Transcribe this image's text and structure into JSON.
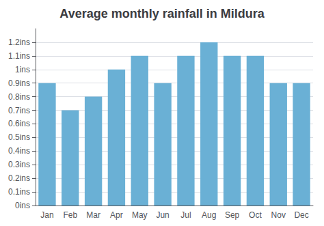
{
  "chart_data": {
    "type": "bar",
    "title": "Average monthly rainfall in Mildura",
    "categories": [
      "Jan",
      "Feb",
      "Mar",
      "Apr",
      "May",
      "Jun",
      "Jul",
      "Aug",
      "Sep",
      "Oct",
      "Nov",
      "Dec"
    ],
    "values": [
      0.9,
      0.7,
      0.8,
      1.0,
      1.1,
      0.9,
      1.1,
      1.2,
      1.1,
      1.1,
      0.9,
      0.9
    ],
    "color": "#6ab0d5",
    "ylim": [
      0,
      1.3
    ],
    "yticks": [
      {
        "value": 0,
        "label": "0ins"
      },
      {
        "value": 0.1,
        "label": "0.1ins"
      },
      {
        "value": 0.2,
        "label": "0.2ins"
      },
      {
        "value": 0.3,
        "label": "0.3ins"
      },
      {
        "value": 0.4,
        "label": "0.4ins"
      },
      {
        "value": 0.5,
        "label": "0.5ins"
      },
      {
        "value": 0.6,
        "label": "0.6ins"
      },
      {
        "value": 0.7,
        "label": "0.7ins"
      },
      {
        "value": 0.8,
        "label": "0.8ins"
      },
      {
        "value": 0.9,
        "label": "0.9ins"
      },
      {
        "value": 1.0,
        "label": "1ins"
      },
      {
        "value": 1.1,
        "label": "1.1ins"
      },
      {
        "value": 1.2,
        "label": "1.2ins"
      }
    ],
    "grid": true
  }
}
